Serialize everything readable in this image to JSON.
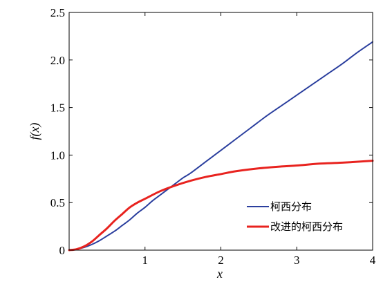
{
  "chart_data": {
    "type": "line",
    "xlabel": "x",
    "ylabel": "f(x)",
    "xlim": [
      0,
      4
    ],
    "ylim": [
      0,
      2.5
    ],
    "xticks": [
      1,
      2,
      3,
      4
    ],
    "xtick_labels": [
      "1",
      "2",
      "3",
      "4"
    ],
    "yticks": [
      0,
      0.5,
      1.0,
      1.5,
      2.0,
      2.5
    ],
    "ytick_labels": [
      "0",
      "0.5",
      "1.0",
      "1.5",
      "2.0",
      "2.5"
    ],
    "grid": false,
    "legend_position": "bottom-right",
    "series": [
      {
        "name": "柯西分布",
        "color": "#2b3f9e",
        "x": [
          0,
          0.1,
          0.2,
          0.3,
          0.4,
          0.5,
          0.6,
          0.7,
          0.8,
          0.9,
          1.0,
          1.1,
          1.2,
          1.3,
          1.4,
          1.5,
          1.6,
          1.8,
          2.0,
          2.2,
          2.4,
          2.6,
          2.8,
          3.0,
          3.2,
          3.4,
          3.6,
          3.8,
          4.0
        ],
        "y": [
          0,
          0.01,
          0.03,
          0.06,
          0.1,
          0.15,
          0.2,
          0.26,
          0.32,
          0.39,
          0.45,
          0.52,
          0.58,
          0.64,
          0.7,
          0.76,
          0.81,
          0.93,
          1.05,
          1.17,
          1.29,
          1.41,
          1.52,
          1.63,
          1.74,
          1.85,
          1.96,
          2.08,
          2.19
        ]
      },
      {
        "name": "改进的柯西分布",
        "color": "#e8231f",
        "x": [
          0,
          0.1,
          0.2,
          0.3,
          0.4,
          0.5,
          0.6,
          0.7,
          0.8,
          0.9,
          1.0,
          1.2,
          1.4,
          1.6,
          1.8,
          2.0,
          2.2,
          2.5,
          2.8,
          3.0,
          3.3,
          3.6,
          4.0
        ],
        "y": [
          0,
          0.01,
          0.04,
          0.09,
          0.16,
          0.23,
          0.31,
          0.38,
          0.45,
          0.5,
          0.54,
          0.62,
          0.68,
          0.73,
          0.77,
          0.8,
          0.83,
          0.86,
          0.88,
          0.89,
          0.91,
          0.92,
          0.94
        ]
      }
    ]
  }
}
